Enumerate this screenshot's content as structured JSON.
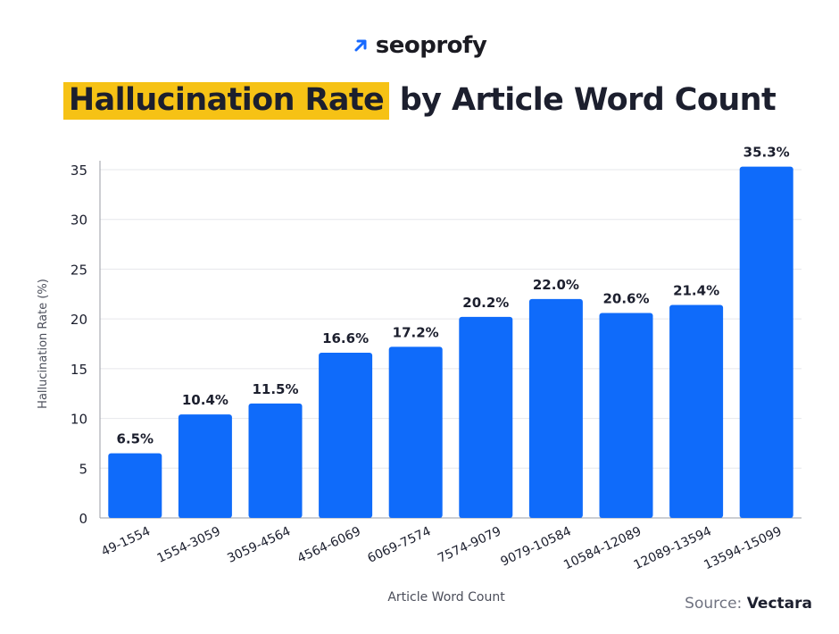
{
  "brand": {
    "name": "seoprofy",
    "icon": "arrow-up-right-icon",
    "icon_color": "#1769ff"
  },
  "title": {
    "highlight": "Hallucination Rate",
    "rest": "by Article Word Count",
    "highlight_color": "#f6c215"
  },
  "source": {
    "label": "Source:",
    "name": "Vectara"
  },
  "chart_data": {
    "type": "bar",
    "categories": [
      "49-1554",
      "1554-3059",
      "3059-4564",
      "4564-6069",
      "6069-7574",
      "7574-9079",
      "9079-10584",
      "10584-12089",
      "12089-13594",
      "13594-15099"
    ],
    "values": [
      6.5,
      10.4,
      11.5,
      16.6,
      17.2,
      20.2,
      22.0,
      20.6,
      21.4,
      35.3
    ],
    "data_labels": [
      "6.5%",
      "10.4%",
      "11.5%",
      "16.6%",
      "17.2%",
      "20.2%",
      "22.0%",
      "20.6%",
      "21.4%",
      "35.3%"
    ],
    "xlabel": "Article Word Count",
    "ylabel": "Hallucination Rate (%)",
    "ylim": [
      0,
      35
    ],
    "yticks": [
      0,
      5,
      10,
      15,
      20,
      25,
      30,
      35
    ],
    "grid": true,
    "bar_color": "#0f6bfa"
  }
}
